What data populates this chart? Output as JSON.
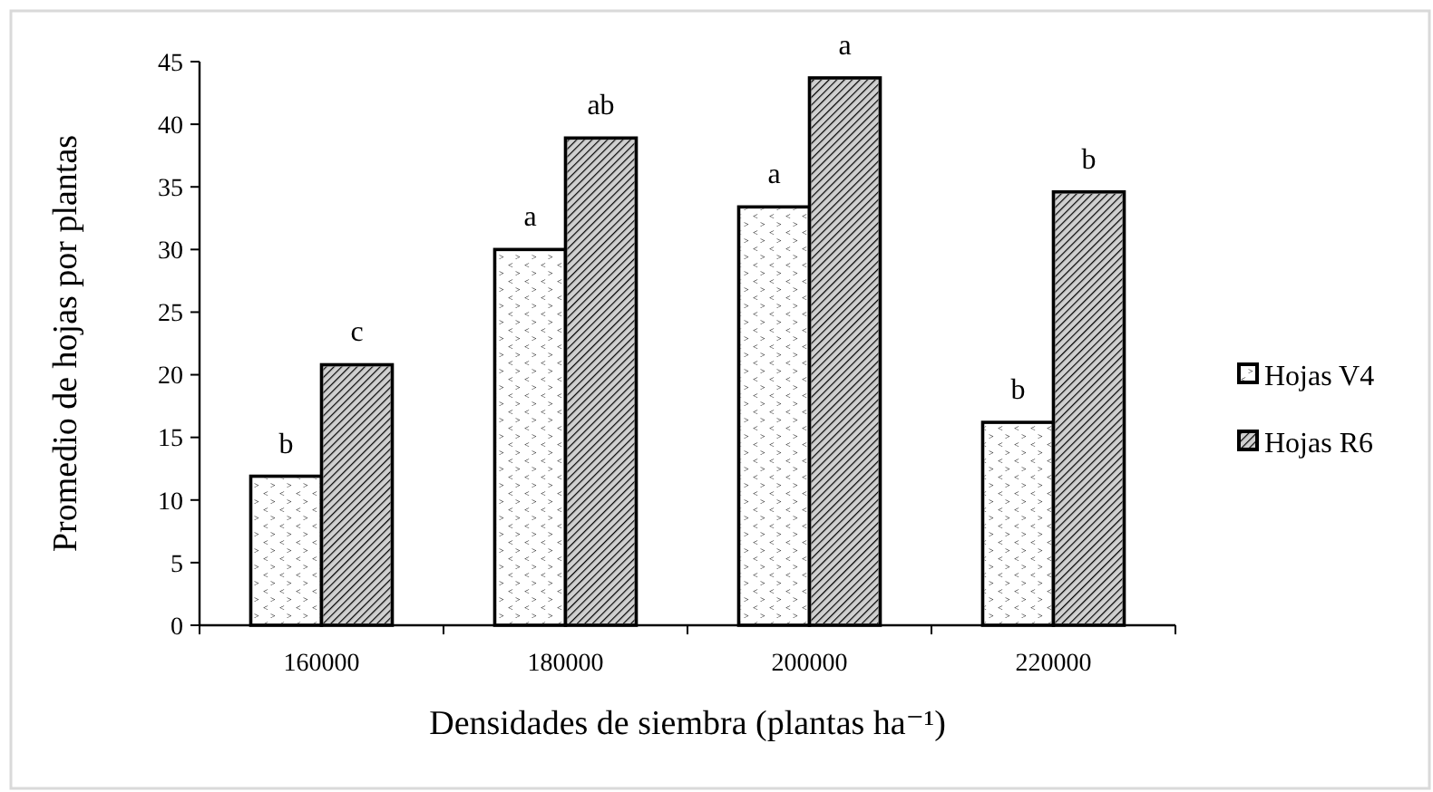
{
  "chart_data": {
    "type": "bar",
    "xlabel": "Densidades de siembra (plantas ha⁻¹)",
    "ylabel": "Promedio de hojas por plantas",
    "categories": [
      "160000",
      "180000",
      "200000",
      "220000"
    ],
    "series": [
      {
        "name": "Hojas V4",
        "color": "#ffffff",
        "values": [
          11.9,
          30.0,
          33.4,
          16.2
        ]
      },
      {
        "name": "Hojas R6",
        "color": "#d0d0d0",
        "values": [
          20.8,
          38.9,
          43.7,
          34.6
        ]
      }
    ],
    "ylim": [
      0,
      45
    ],
    "yticks": [
      0,
      5,
      10,
      15,
      20,
      25,
      30,
      35,
      40,
      45
    ],
    "grid": false,
    "legend": "right",
    "annotations": [
      {
        "text": "b",
        "x": "160000",
        "y": 11.9
      },
      {
        "text": "c",
        "x": "160000",
        "y": 20.8
      },
      {
        "text": "a",
        "x": "180000",
        "y": 30.0
      },
      {
        "text": "ab",
        "x": "180000",
        "y": 38.9
      },
      {
        "text": "a",
        "x": "200000",
        "y": 33.4
      },
      {
        "text": "a",
        "x": "200000",
        "y": 43.7
      },
      {
        "text": "b",
        "x": "220000",
        "y": 16.2
      },
      {
        "text": "b",
        "x": "220000",
        "y": 34.6
      }
    ]
  }
}
